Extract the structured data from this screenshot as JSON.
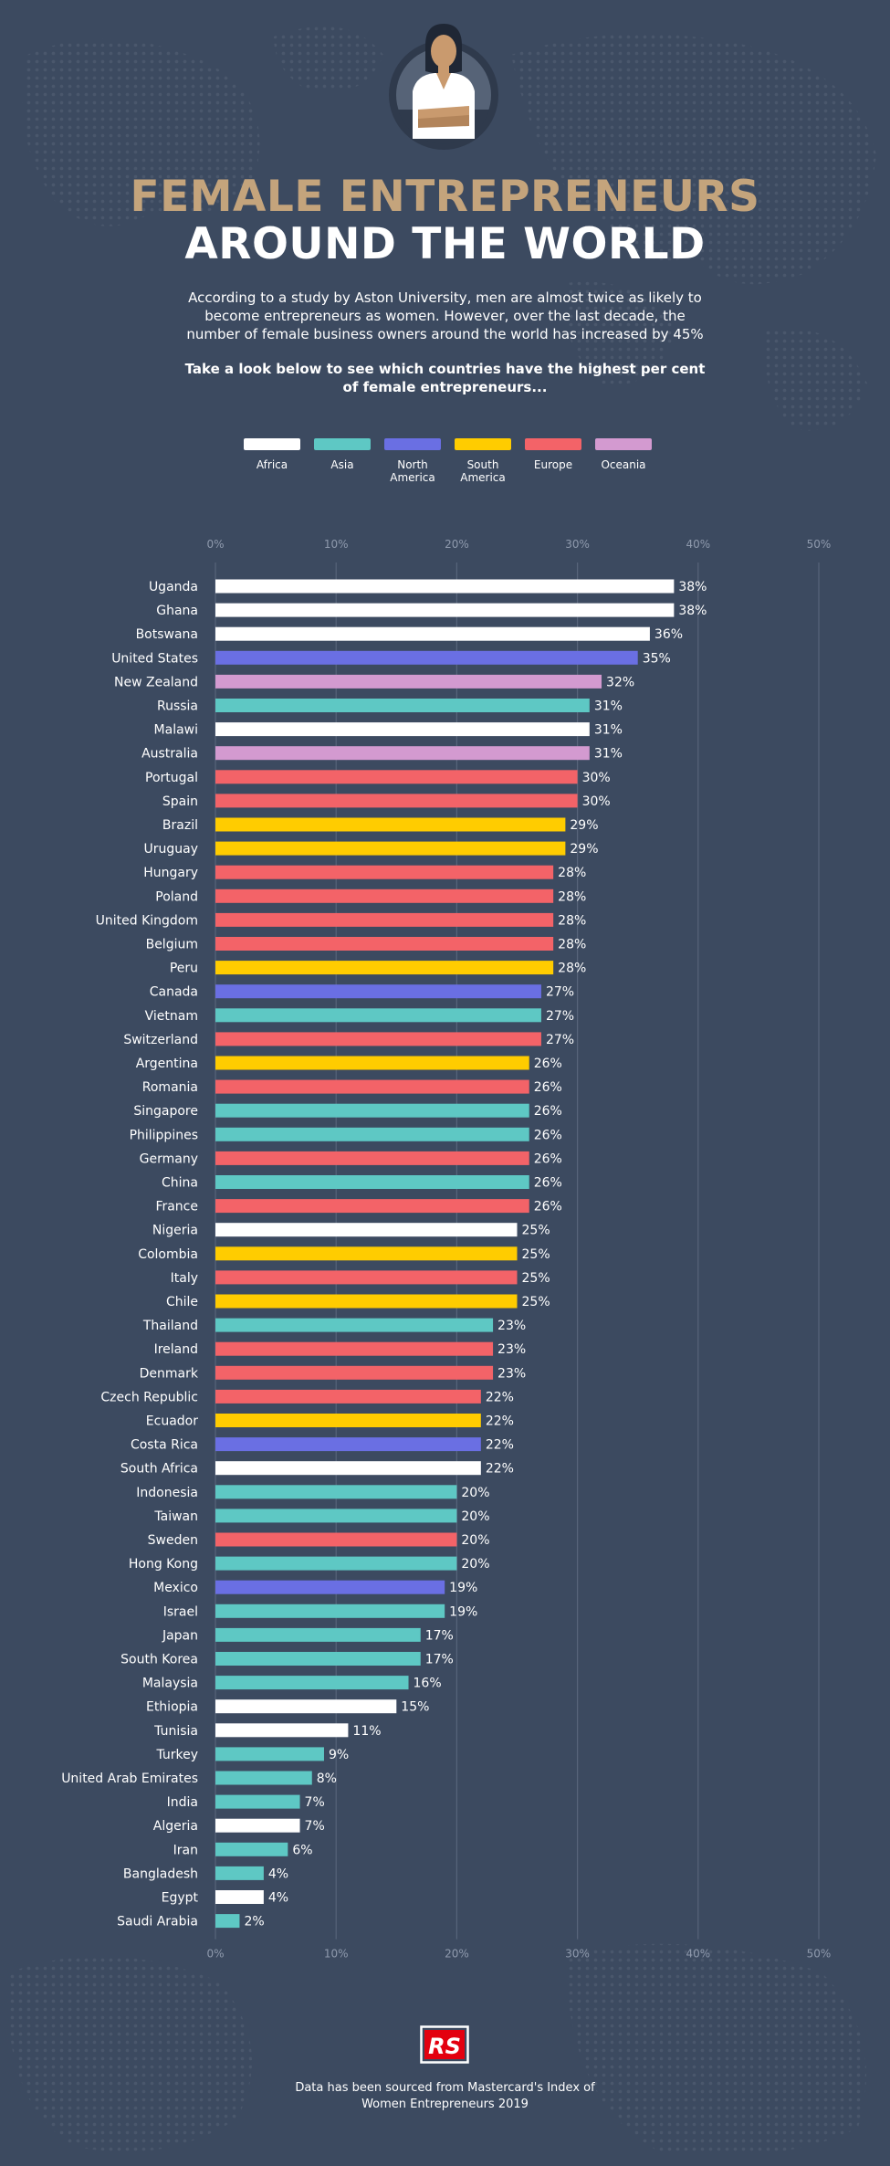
{
  "header": {
    "title_line1": "FEMALE ENTREPRENEURS",
    "title_line2": "AROUND THE WORLD",
    "intro": "According to a study by Aston University, men are almost twice as likely to become entrepreneurs as women. However, over the last decade, the number of female business owners around the world has increased by 45%",
    "prompt": "Take a look below to see which countries have the highest per cent of female entrepreneurs..."
  },
  "legend": [
    {
      "label": "Africa",
      "color": "#ffffff"
    },
    {
      "label": "Asia",
      "color": "#5ec8c4"
    },
    {
      "label": "North America",
      "color": "#6a6fe3"
    },
    {
      "label": "South America",
      "color": "#ffcc00"
    },
    {
      "label": "Europe",
      "color": "#f36368"
    },
    {
      "label": "Oceania",
      "color": "#d39ad0"
    }
  ],
  "chart_data": {
    "type": "bar",
    "orientation": "horizontal",
    "xlim": [
      0,
      50
    ],
    "xticks": [
      "0%",
      "10%",
      "20%",
      "30%",
      "40%",
      "50%"
    ],
    "grid": true,
    "bars": [
      {
        "country": "Uganda",
        "value": 38,
        "label": "38%",
        "region": "Africa"
      },
      {
        "country": "Ghana",
        "value": 38,
        "label": "38%",
        "region": "Africa"
      },
      {
        "country": "Botswana",
        "value": 36,
        "label": "36%",
        "region": "Africa"
      },
      {
        "country": "United States",
        "value": 35,
        "label": "35%",
        "region": "North America"
      },
      {
        "country": "New Zealand",
        "value": 32,
        "label": "32%",
        "region": "Oceania"
      },
      {
        "country": "Russia",
        "value": 31,
        "label": "31%",
        "region": "Asia"
      },
      {
        "country": "Malawi",
        "value": 31,
        "label": "31%",
        "region": "Africa"
      },
      {
        "country": "Australia",
        "value": 31,
        "label": "31%",
        "region": "Oceania"
      },
      {
        "country": "Portugal",
        "value": 30,
        "label": "30%",
        "region": "Europe"
      },
      {
        "country": "Spain",
        "value": 30,
        "label": "30%",
        "region": "Europe"
      },
      {
        "country": "Brazil",
        "value": 29,
        "label": "29%",
        "region": "South America"
      },
      {
        "country": "Uruguay",
        "value": 29,
        "label": "29%",
        "region": "South America"
      },
      {
        "country": "Hungary",
        "value": 28,
        "label": "28%",
        "region": "Europe"
      },
      {
        "country": "Poland",
        "value": 28,
        "label": "28%",
        "region": "Europe"
      },
      {
        "country": "United Kingdom",
        "value": 28,
        "label": "28%",
        "region": "Europe"
      },
      {
        "country": "Belgium",
        "value": 28,
        "label": "28%",
        "region": "Europe"
      },
      {
        "country": "Peru",
        "value": 28,
        "label": "28%",
        "region": "South America"
      },
      {
        "country": "Canada",
        "value": 27,
        "label": "27%",
        "region": "North America"
      },
      {
        "country": "Vietnam",
        "value": 27,
        "label": "27%",
        "region": "Asia"
      },
      {
        "country": "Switzerland",
        "value": 27,
        "label": "27%",
        "region": "Europe"
      },
      {
        "country": "Argentina",
        "value": 26,
        "label": "26%",
        "region": "South America"
      },
      {
        "country": "Romania",
        "value": 26,
        "label": "26%",
        "region": "Europe"
      },
      {
        "country": "Singapore",
        "value": 26,
        "label": "26%",
        "region": "Asia"
      },
      {
        "country": "Philippines",
        "value": 26,
        "label": "26%",
        "region": "Asia"
      },
      {
        "country": "Germany",
        "value": 26,
        "label": "26%",
        "region": "Europe"
      },
      {
        "country": "China",
        "value": 26,
        "label": "26%",
        "region": "Asia"
      },
      {
        "country": "France",
        "value": 26,
        "label": "26%",
        "region": "Europe"
      },
      {
        "country": "Nigeria",
        "value": 25,
        "label": "25%",
        "region": "Africa"
      },
      {
        "country": "Colombia",
        "value": 25,
        "label": "25%",
        "region": "South America"
      },
      {
        "country": "Italy",
        "value": 25,
        "label": "25%",
        "region": "Europe"
      },
      {
        "country": "Chile",
        "value": 25,
        "label": "25%",
        "region": "South America"
      },
      {
        "country": "Thailand",
        "value": 23,
        "label": "23%",
        "region": "Asia"
      },
      {
        "country": "Ireland",
        "value": 23,
        "label": "23%",
        "region": "Europe"
      },
      {
        "country": "Denmark",
        "value": 23,
        "label": "23%",
        "region": "Europe"
      },
      {
        "country": "Czech Republic",
        "value": 22,
        "label": "22%",
        "region": "Europe"
      },
      {
        "country": "Ecuador",
        "value": 22,
        "label": "22%",
        "region": "South America"
      },
      {
        "country": "Costa Rica",
        "value": 22,
        "label": "22%",
        "region": "North America"
      },
      {
        "country": "South Africa",
        "value": 22,
        "label": "22%",
        "region": "Africa"
      },
      {
        "country": "Indonesia",
        "value": 20,
        "label": "20%",
        "region": "Asia"
      },
      {
        "country": "Taiwan",
        "value": 20,
        "label": "20%",
        "region": "Asia"
      },
      {
        "country": "Sweden",
        "value": 20,
        "label": "20%",
        "region": "Europe"
      },
      {
        "country": "Hong Kong",
        "value": 20,
        "label": "20%",
        "region": "Asia"
      },
      {
        "country": "Mexico",
        "value": 19,
        "label": "19%",
        "region": "North America"
      },
      {
        "country": "Israel",
        "value": 19,
        "label": "19%",
        "region": "Asia"
      },
      {
        "country": "Japan",
        "value": 17,
        "label": "17%",
        "region": "Asia"
      },
      {
        "country": "South Korea",
        "value": 17,
        "label": "17%",
        "region": "Asia"
      },
      {
        "country": "Malaysia",
        "value": 16,
        "label": "16%",
        "region": "Asia"
      },
      {
        "country": "Ethiopia",
        "value": 15,
        "label": "15%",
        "region": "Africa"
      },
      {
        "country": "Tunisia",
        "value": 11,
        "label": "11%",
        "region": "Africa"
      },
      {
        "country": "Turkey",
        "value": 9,
        "label": "9%",
        "region": "Asia"
      },
      {
        "country": "United Arab Emirates",
        "value": 8,
        "label": "8%",
        "region": "Asia"
      },
      {
        "country": "India",
        "value": 7,
        "label": "7%",
        "region": "Asia"
      },
      {
        "country": "Algeria",
        "value": 7,
        "label": "7%",
        "region": "Africa"
      },
      {
        "country": "Iran",
        "value": 6,
        "label": "6%",
        "region": "Asia"
      },
      {
        "country": "Bangladesh",
        "value": 4,
        "label": "4%",
        "region": "Asia"
      },
      {
        "country": "Egypt",
        "value": 4,
        "label": "4%",
        "region": "Africa"
      },
      {
        "country": "Saudi Arabia",
        "value": 2,
        "label": "2%",
        "region": "Asia"
      }
    ]
  },
  "footer": {
    "logo_text": "RS",
    "logo_color": "#e3000f",
    "source": "Data has been sourced from Mastercard's Index of Women Entrepreneurs 2019"
  }
}
